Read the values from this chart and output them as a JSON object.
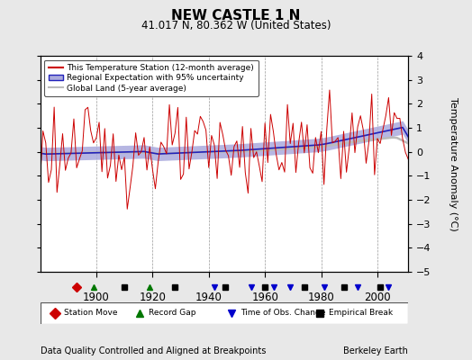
{
  "title": "NEW CASTLE 1 N",
  "subtitle": "41.017 N, 80.362 W (United States)",
  "ylabel": "Temperature Anomaly (°C)",
  "xlabel_left": "Data Quality Controlled and Aligned at Breakpoints",
  "xlabel_right": "Berkeley Earth",
  "year_start": 1880,
  "year_end": 2011,
  "ylim": [
    -5,
    4
  ],
  "yticks": [
    -5,
    -4,
    -3,
    -2,
    -1,
    0,
    1,
    2,
    3,
    4
  ],
  "xticks": [
    1900,
    1920,
    1940,
    1960,
    1980,
    2000
  ],
  "bg_color": "#e8e8e8",
  "plot_bg_color": "#ffffff",
  "red_color": "#cc0000",
  "blue_color": "#2222bb",
  "blue_fill_color": "#aaaadd",
  "gray_color": "#bbbbbb",
  "legend_labels": [
    "This Temperature Station (12-month average)",
    "Regional Expectation with 95% uncertainty",
    "Global Land (5-year average)"
  ],
  "marker_legend": [
    {
      "label": "Station Move",
      "color": "#cc0000",
      "marker": "D"
    },
    {
      "label": "Record Gap",
      "color": "#007700",
      "marker": "^"
    },
    {
      "label": "Time of Obs. Change",
      "color": "#0000cc",
      "marker": "v"
    },
    {
      "label": "Empirical Break",
      "color": "#000000",
      "marker": "s"
    }
  ],
  "station_moves": [
    1893
  ],
  "record_gaps": [
    1899,
    1919
  ],
  "obs_changes": [
    1942,
    1955,
    1963,
    1969,
    1981,
    1993,
    2004
  ],
  "emp_breaks": [
    1910,
    1928,
    1946,
    1960,
    1974,
    1988,
    2001
  ]
}
